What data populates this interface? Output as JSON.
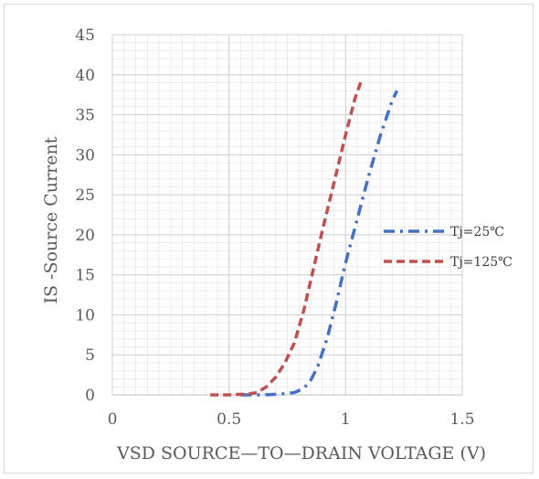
{
  "chart_data": {
    "type": "line",
    "title": "",
    "xlabel": "VSD SOURCE—TO—DRAIN VOLTAGE (V)",
    "ylabel": "IS -Source Current",
    "xlim": [
      0,
      1.5
    ],
    "ylim": [
      0,
      45
    ],
    "x_ticks": [
      "0",
      "0.5",
      "1",
      "1.5"
    ],
    "y_ticks": [
      "0",
      "5",
      "10",
      "15",
      "20",
      "25",
      "30",
      "35",
      "40",
      "45"
    ],
    "grid": true,
    "legend_position": "right",
    "series": [
      {
        "name": "Tj=25℃",
        "color": "#4472c4",
        "dash": "dash-dot",
        "x": [
          0.55,
          0.65,
          0.72,
          0.78,
          0.82,
          0.85,
          0.88,
          0.92,
          0.96,
          1.0,
          1.05,
          1.1,
          1.15,
          1.2,
          1.22
        ],
        "y": [
          0,
          0,
          0.1,
          0.3,
          0.8,
          1.8,
          3.5,
          7.0,
          11.5,
          16.5,
          22.0,
          27.5,
          32.5,
          36.8,
          38
        ]
      },
      {
        "name": "Tj=125℃",
        "color": "#c0504d",
        "dash": "dash",
        "x": [
          0.42,
          0.5,
          0.58,
          0.62,
          0.66,
          0.7,
          0.74,
          0.78,
          0.82,
          0.86,
          0.9,
          0.95,
          1.0,
          1.04,
          1.07
        ],
        "y": [
          0,
          0,
          0.1,
          0.3,
          1.0,
          2.2,
          4.0,
          6.5,
          10.5,
          15.5,
          20.5,
          26.5,
          32.5,
          37.0,
          39.5
        ]
      }
    ]
  }
}
